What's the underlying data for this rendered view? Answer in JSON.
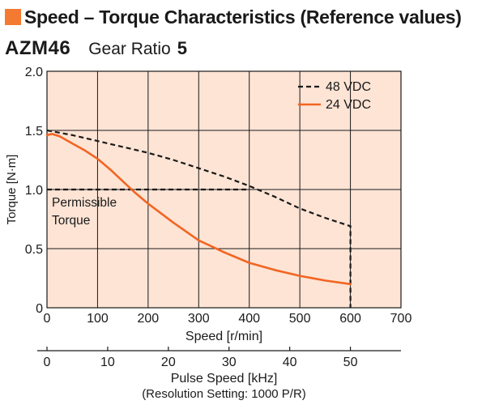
{
  "header": {
    "title": "Speed – Torque Characteristics (Reference values)",
    "model": "AZM46",
    "gear_label": "Gear Ratio",
    "gear_value": "5"
  },
  "colors": {
    "accent": "#f47a32",
    "plot_background": "#fde4d5",
    "grid": "#1a1a1a",
    "series_48": "#1a1a1a",
    "series_24": "#f26522"
  },
  "chart_data": {
    "type": "line",
    "xlabel": "Speed [r/min]",
    "ylabel": "Torque [N·m]",
    "xlim": [
      0,
      700
    ],
    "ylim": [
      0,
      2.0
    ],
    "x_ticks": [
      "0",
      "100",
      "200",
      "300",
      "400",
      "500",
      "600",
      "700"
    ],
    "y_ticks": [
      "0",
      "0.5",
      "1.0",
      "1.5",
      "2.0"
    ],
    "grid": true,
    "legend_position": "top-right",
    "secondary_axis": {
      "label": "Pulse Speed [kHz]",
      "note": "(Resolution Setting: 1000 P/R)",
      "ticks": [
        "0",
        "10",
        "20",
        "30",
        "40",
        "50"
      ]
    },
    "annotation": {
      "line1": "Permissible",
      "line2": "Torque",
      "value": 1.0,
      "x_range": [
        0,
        400
      ]
    },
    "series": [
      {
        "name": "48 VDC",
        "style": "dashed",
        "x": [
          0,
          50,
          100,
          150,
          200,
          250,
          300,
          350,
          400,
          450,
          500,
          550,
          600,
          600
        ],
        "y": [
          1.5,
          1.46,
          1.41,
          1.36,
          1.31,
          1.25,
          1.18,
          1.11,
          1.03,
          0.94,
          0.84,
          0.76,
          0.69,
          0
        ]
      },
      {
        "name": "24 VDC",
        "style": "solid",
        "x": [
          0,
          10,
          25,
          50,
          75,
          100,
          125,
          150,
          175,
          200,
          250,
          300,
          350,
          400,
          450,
          500,
          550,
          600
        ],
        "y": [
          1.46,
          1.47,
          1.45,
          1.39,
          1.33,
          1.26,
          1.17,
          1.07,
          0.97,
          0.88,
          0.72,
          0.57,
          0.47,
          0.38,
          0.32,
          0.27,
          0.23,
          0.2
        ]
      }
    ]
  }
}
